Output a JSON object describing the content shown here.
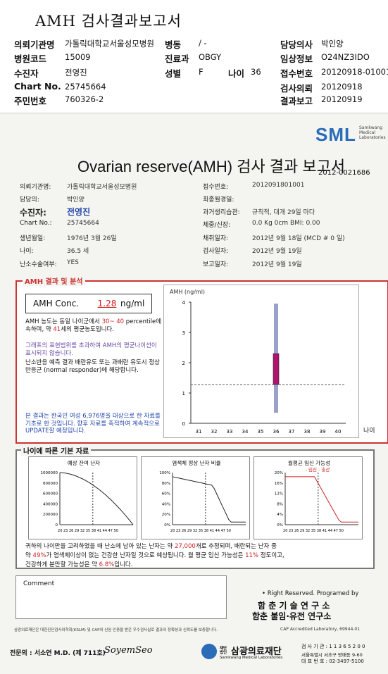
{
  "header": {
    "title": "AMH 검사결과보고서",
    "rows": [
      [
        {
          "l": "의뢰기관명",
          "v": "가톨릭대학교서울성모병원"
        },
        {
          "l": "병동",
          "v": "/ -"
        },
        {
          "l": "담당의사",
          "v": "박인양"
        }
      ],
      [
        {
          "l": "병원코드",
          "v": "15009"
        },
        {
          "l": "진료과",
          "v": "OBGY"
        },
        {
          "l": "임상정보",
          "v": "O24NZ3IDO"
        }
      ],
      [
        {
          "l": "수진자",
          "v": "전영진"
        },
        {
          "l": "성별",
          "v": "F"
        },
        {
          "l": "나이",
          "v": "36"
        },
        {
          "l": "접수번호",
          "v": "20120918-01001"
        }
      ],
      [
        {
          "l": "Chart No.",
          "v": "25745664"
        },
        {
          "l": "검사의뢰",
          "v": "20120918"
        }
      ],
      [
        {
          "l": "주민번호",
          "v": "760326-2"
        },
        {
          "l": "결과보고",
          "v": "20120919"
        }
      ]
    ]
  },
  "logo": {
    "text": "SML",
    "sub": "Samkwang Medical Laboratories"
  },
  "report": {
    "title": "Ovarian reserve(AMH) 검사 결과 보고서",
    "doc_no": "2012-0021686",
    "left": [
      {
        "l": "의뢰기관명:",
        "v": "가톨릭대학교서울성모병원"
      },
      {
        "l": "담당의:",
        "v": "박인양"
      },
      {
        "l": "수진자:",
        "v": "전영진"
      },
      {
        "l": "Chart No.:",
        "v": "25745664"
      },
      {
        "l": "생년월일:",
        "v": "1976년 3월 26일"
      },
      {
        "l": "나이:",
        "v": "36.5 세"
      },
      {
        "l": "난소수술여부:",
        "v": "YES"
      }
    ],
    "right": [
      {
        "l": "접수번호:",
        "v": "2012091801001"
      },
      {
        "l": "최종월경일:",
        "v": ""
      },
      {
        "l": "과거생리습관:",
        "v": "규칙적, 대개    29일 마다"
      },
      {
        "l": "체중/신장:",
        "v": "0.0 Kg       0cm    BMI:     0.00"
      },
      {
        "l": "채취일자:",
        "v": "2012년 9월 18일   (MCD #  0 일)"
      },
      {
        "l": "검사일자:",
        "v": "2012년 9월 19일"
      },
      {
        "l": "보고일자:",
        "v": "2012년 9월 19일"
      }
    ]
  },
  "result": {
    "header": "AMH 결과 및 분석",
    "conc_label": "AMH Conc.",
    "conc_value": "1.28",
    "conc_unit": "ng/ml",
    "p1a": "AMH 농도는 동일 나이군에서",
    "p1b": "30~ 40",
    "p1c": "percentile에 속하며, 약",
    "p1d": "41",
    "p1e": "세의 평균농도입니다.",
    "p2": "그래프의 표현범위를 초과하여 AMH의 평균나이선이 표시되지 않습니다.",
    "p3": "난소반응 예측 결과 배란유도 또는 과배란 유도시 정상반응군 (normal responder)에 해당합니다.",
    "p4": "본 결과는 한국인 여성 6,976명을 대상으로 한 자료를 기초로 한 것입니다. 향후 자료를 축적하여 계속적으로 UPDATE할 예정입니다."
  },
  "chart_data": [
    {
      "type": "bar",
      "title": "",
      "ylabel": "AMH (ng/ml)",
      "xlabel": "나이",
      "x": [
        31,
        32,
        33,
        34,
        35,
        36,
        37,
        38,
        39,
        40
      ],
      "ylim": [
        0,
        4
      ],
      "yticks": [
        0,
        1,
        2,
        3,
        4
      ],
      "range_bar": {
        "x": 36,
        "low": 0.35,
        "high": 3.95,
        "color": "#9aa0c8"
      },
      "box": {
        "x": 36,
        "low": 1.28,
        "high": 2.3,
        "color": "#b0146e"
      },
      "reference_line": 1.28,
      "grid": false
    },
    {
      "type": "line",
      "title": "예상 잔여 난자",
      "y_ticks": [
        "1000000",
        "800000",
        "600000",
        "400000",
        "200000",
        "0"
      ],
      "x_ticks": "20 23 26 29 32 35 38 41 44 47 50"
    },
    {
      "type": "line",
      "title": "염색체 정상 난자 비율",
      "y_ticks": [
        "100%",
        "80%",
        "60%",
        "40%",
        "20%",
        "0%"
      ],
      "x_ticks": "20 23 26 29 32 35 38 41 44 47 50"
    },
    {
      "type": "line",
      "title": "월평균 임신 가능성",
      "legend": "- 임신 - 출산",
      "y_ticks": [
        "20%",
        "16%",
        "12%",
        "8%",
        "4%",
        "0%"
      ],
      "x_ticks": "20 23 26 29 32 35 38 41 44 47 50"
    }
  ],
  "basic": {
    "header": "나이에 따른 기본 자료",
    "s1": "귀하의 나이만을 고려하였을 때 난소에 남아 있는 난자는 약",
    "s1v": "27,000",
    "s1b": "개로 추정되며, 배란되는 난자 중",
    "s2a": "약",
    "s2v": "49%",
    "s2b": "가 염색체이상이 없는 건강한 난자일 것으로 예상됩니다. 월 평균 임신 가능성은",
    "s2v2": "11%",
    "s2c": "정도이고,",
    "s3a": "건강하게 분만할 가능성은 약",
    "s3v": "6.8%",
    "s3b": "입니다."
  },
  "footer": {
    "comment": "Comment",
    "rights": "• Right Reserved. Programed by",
    "inst1": "함 춘 기 술 연 구 소",
    "inst2": "함춘 불임·유전 연구소",
    "fine": "삼광의료재단은 대한진단검사의학회(KSLM) 및 CAP의 신임 인증을 받은 우수검사실로 결과의 정확성과 신뢰도를 보증합니다.",
    "cap": "CAP Accredited Laboratory, 69944-01",
    "doctor": "전문의 : 서소연 M.D. (제 711호)",
    "sign": "SoyemSeo",
    "org": "삼광의료재단",
    "org_sub": "Samkwang Medical Laboratories",
    "org_pre": "재단법인",
    "info1": "검 사 기 관 : 1 1 3 6 5 2 0 0",
    "info2": "서울특별시 서초구 방배동 9-60",
    "info3": "대 표 번 호 : 02-3497-5100"
  }
}
